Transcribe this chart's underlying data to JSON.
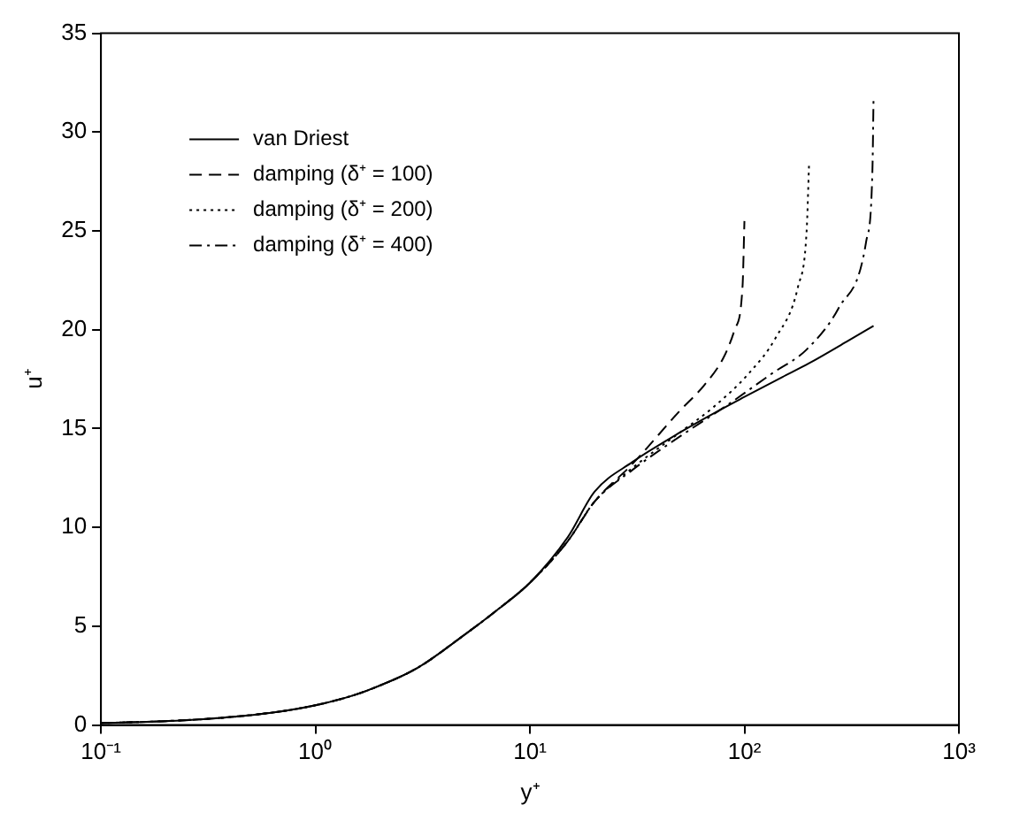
{
  "chart_data": {
    "type": "line",
    "xlabel": "y⁺",
    "ylabel": "u⁺",
    "log": "x",
    "xlim": [
      0.1,
      1000
    ],
    "xticks": [
      {
        "value": 0.1,
        "label": "10⁻¹"
      },
      {
        "value": 1,
        "label": "10⁰"
      },
      {
        "value": 10,
        "label": "10¹"
      },
      {
        "value": 100,
        "label": "10²"
      },
      {
        "value": 1000,
        "label": "10³"
      }
    ],
    "ylim": [
      0,
      35
    ],
    "yticks": [
      0,
      5,
      10,
      15,
      20,
      25,
      30,
      35
    ],
    "grid": false,
    "legend": "top left",
    "marker": "none",
    "series": [
      {
        "name": "van Driest",
        "color": "#000000",
        "line_style": "solid",
        "x": [
          0.1,
          0.2,
          0.3,
          0.5,
          0.7,
          1,
          1.5,
          2,
          3,
          5,
          7,
          10,
          15,
          20,
          30,
          50,
          70,
          100,
          150,
          200,
          300,
          400
        ],
        "values": [
          0.1,
          0.2,
          0.3,
          0.5,
          0.7,
          1.0,
          1.5,
          2.0,
          2.9,
          4.6,
          5.8,
          7.2,
          9.5,
          11.8,
          13.3,
          14.8,
          15.7,
          16.6,
          17.6,
          18.3,
          19.4,
          20.2
        ]
      },
      {
        "name": "damping (δ⁺ = 100)",
        "color": "#000000",
        "line_style": "dashed",
        "x": [
          0.1,
          0.2,
          0.3,
          0.5,
          0.7,
          1,
          1.5,
          2,
          3,
          5,
          7,
          10,
          15,
          20,
          30,
          50,
          65,
          80,
          90,
          98,
          100
        ],
        "values": [
          0.1,
          0.2,
          0.3,
          0.5,
          0.7,
          1.0,
          1.5,
          2.0,
          2.9,
          4.6,
          5.8,
          7.2,
          9.3,
          11.3,
          13.2,
          15.9,
          17.2,
          18.6,
          20.0,
          22.2,
          25.5
        ]
      },
      {
        "name": "damping (δ⁺ = 200)",
        "color": "#000000",
        "line_style": "dotted",
        "x": [
          0.1,
          0.2,
          0.3,
          0.5,
          0.7,
          1,
          1.5,
          2,
          3,
          5,
          7,
          10,
          15,
          20,
          30,
          50,
          72,
          105,
          140,
          178,
          195,
          200
        ],
        "values": [
          0.1,
          0.2,
          0.3,
          0.5,
          0.7,
          1.0,
          1.5,
          2.0,
          2.9,
          4.6,
          5.8,
          7.2,
          9.3,
          11.3,
          13.0,
          14.8,
          16.1,
          17.8,
          19.6,
          22.2,
          25.0,
          28.3
        ]
      },
      {
        "name": "damping (δ⁺ = 400)",
        "color": "#000000",
        "line_style": "dashdot",
        "x": [
          0.1,
          0.2,
          0.3,
          0.5,
          0.7,
          1,
          1.5,
          2,
          3,
          5,
          7,
          10,
          15,
          20,
          30,
          50,
          81,
          135,
          195,
          275,
          370,
          395,
          400
        ],
        "values": [
          0.1,
          0.2,
          0.3,
          0.5,
          0.7,
          1.0,
          1.5,
          2.0,
          2.9,
          4.6,
          5.8,
          7.2,
          9.3,
          11.3,
          12.9,
          14.6,
          16.1,
          17.8,
          19.0,
          21.1,
          24.5,
          28.0,
          31.8
        ]
      }
    ]
  }
}
